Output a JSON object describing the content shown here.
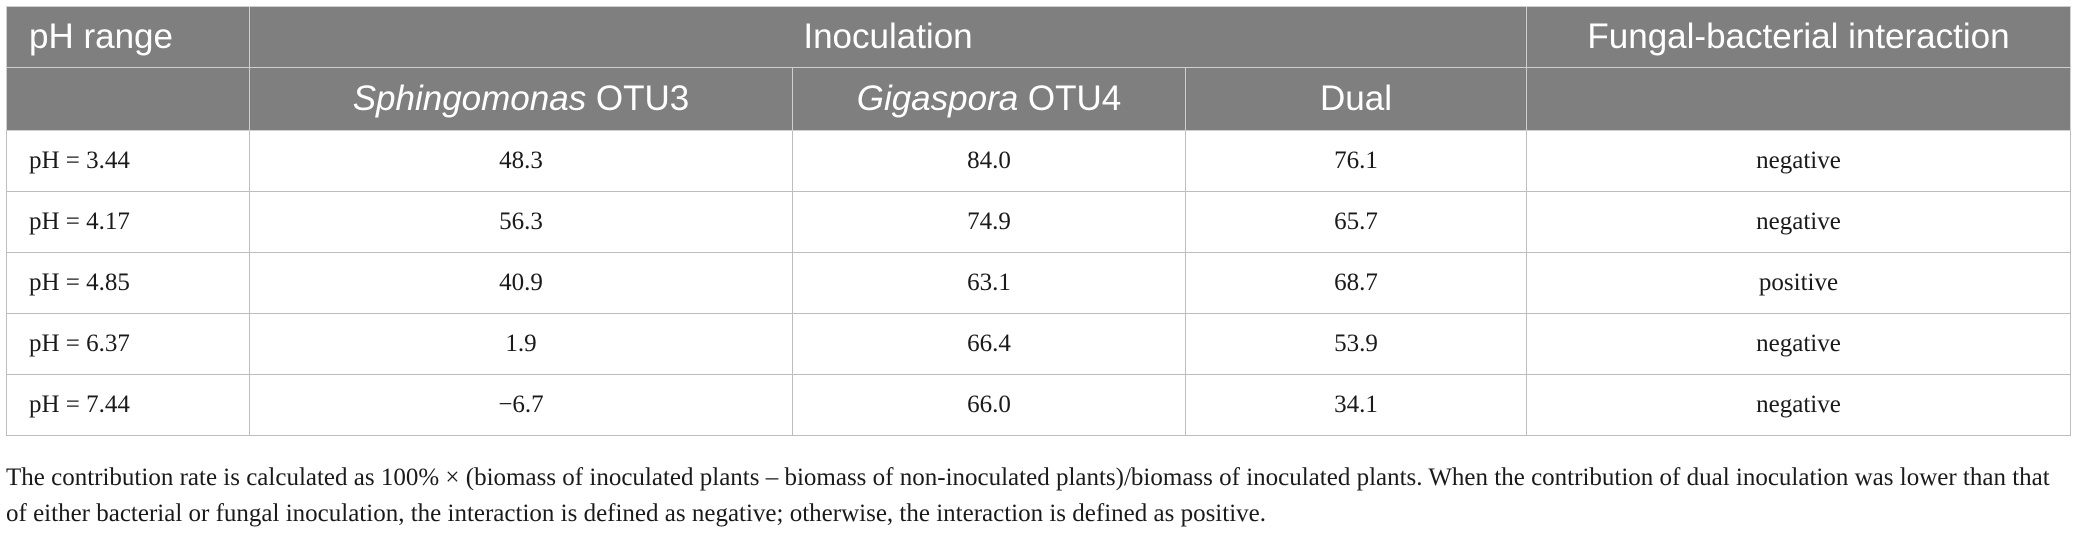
{
  "table": {
    "header_row1": {
      "ph_range": "pH range",
      "inoculation": "Inoculation",
      "interaction": "Fungal-bacterial interaction"
    },
    "header_row2": {
      "sphingomonas_italic": "Sphingomonas",
      "sphingomonas_suffix": " OTU3",
      "gigaspora_italic": "Gigaspora",
      "gigaspora_suffix": " OTU4",
      "dual": "Dual"
    },
    "rows": [
      {
        "ph": "pH = 3.44",
        "sphingomonas": "48.3",
        "gigaspora": "84.0",
        "dual": "76.1",
        "interaction": "negative"
      },
      {
        "ph": "pH = 4.17",
        "sphingomonas": "56.3",
        "gigaspora": "74.9",
        "dual": "65.7",
        "interaction": "negative"
      },
      {
        "ph": "pH = 4.85",
        "sphingomonas": "40.9",
        "gigaspora": "63.1",
        "dual": "68.7",
        "interaction": "positive"
      },
      {
        "ph": "pH = 6.37",
        "sphingomonas": "1.9",
        "gigaspora": "66.4",
        "dual": "53.9",
        "interaction": "negative"
      },
      {
        "ph": "pH = 7.44",
        "sphingomonas": "−6.7",
        "gigaspora": "66.0",
        "dual": "34.1",
        "interaction": "negative"
      }
    ]
  },
  "footnote": "The contribution rate is calculated as 100% × (biomass of inoculated plants – biomass of non-inoculated plants)/biomass of inoculated plants. When the contribution of dual inoculation was lower than that of either bacterial or fungal inoculation, the interaction is defined as negative; otherwise, the interaction is defined as positive.",
  "colors": {
    "header_bg": "#7f7f7f",
    "header_text": "#ffffff",
    "border": "#bdbdbd"
  }
}
